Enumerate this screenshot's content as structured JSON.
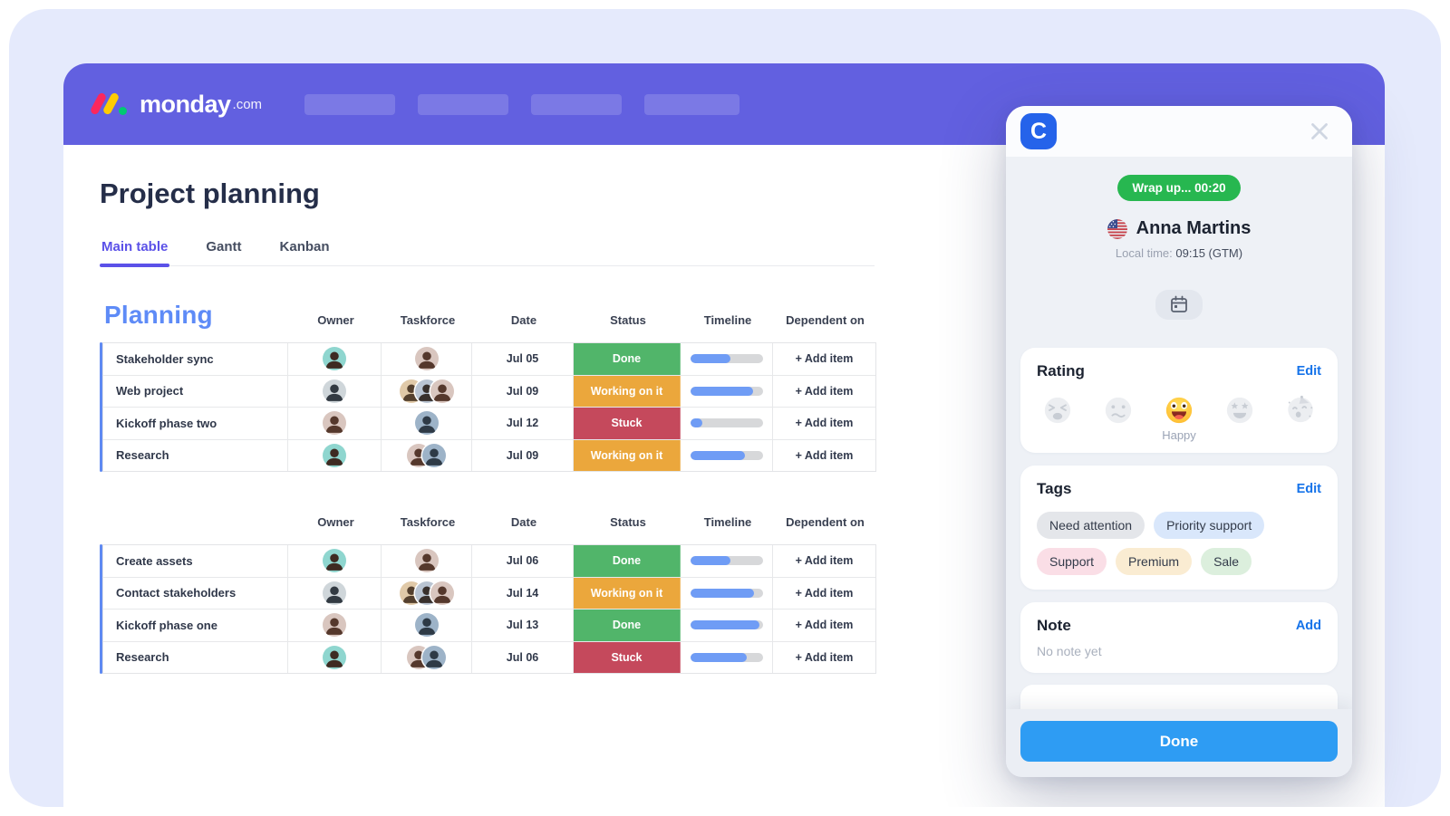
{
  "app": {
    "logo": {
      "brand": "monday",
      "suffix": ".com"
    },
    "title": "Project planning",
    "tabs": [
      {
        "label": "Main table",
        "active": true
      },
      {
        "label": "Gantt",
        "active": false
      },
      {
        "label": "Kanban",
        "active": false
      }
    ]
  },
  "board": {
    "group_title": "Planning",
    "columns": [
      "Owner",
      "Taskforce",
      "Date",
      "Status",
      "Timeline",
      "Dependent on"
    ],
    "add_item_label": "+ Add item",
    "status_colors": {
      "Done": "#51b56a",
      "Working on it": "#eba73c",
      "Stuck": "#c5495c"
    },
    "timeline_colors": {
      "fill": "#6f9cf5",
      "track": "#d7d8da"
    },
    "accent_color": "#5f8af2",
    "tables": [
      {
        "rows": [
          {
            "name": "Stakeholder sync",
            "owner": "p1",
            "taskforce": [
              "p3"
            ],
            "date": "Jul 05",
            "status": "Done",
            "progress": 55
          },
          {
            "name": "Web project",
            "owner": "p2",
            "taskforce": [
              "p6",
              "p7",
              "p3"
            ],
            "date": "Jul 09",
            "status": "Working on it",
            "progress": 87
          },
          {
            "name": "Kickoff phase two",
            "owner": "p3",
            "taskforce": [
              "p5"
            ],
            "date": "Jul 12",
            "status": "Stuck",
            "progress": 17
          },
          {
            "name": "Research",
            "owner": "p1",
            "taskforce": [
              "p3",
              "p5"
            ],
            "date": "Jul 09",
            "status": "Working on it",
            "progress": 75
          }
        ]
      },
      {
        "rows": [
          {
            "name": "Create assets",
            "owner": "p1",
            "taskforce": [
              "p3"
            ],
            "date": "Jul 06",
            "status": "Done",
            "progress": 55
          },
          {
            "name": "Contact stakeholders",
            "owner": "p2",
            "taskforce": [
              "p6",
              "p7",
              "p3"
            ],
            "date": "Jul 14",
            "status": "Working on it",
            "progress": 88
          },
          {
            "name": "Kickoff phase one",
            "owner": "p3",
            "taskforce": [
              "p5"
            ],
            "date": "Jul 13",
            "status": "Done",
            "progress": 95
          },
          {
            "name": "Research",
            "owner": "p1",
            "taskforce": [
              "p3",
              "p5"
            ],
            "date": "Jul 06",
            "status": "Stuck",
            "progress": 78
          }
        ]
      }
    ],
    "people": {
      "p1": {
        "bg": "#8fd6cf",
        "fg": "#3e2b22"
      },
      "p2": {
        "bg": "#cfd6da",
        "fg": "#323a42"
      },
      "p3": {
        "bg": "#d9c6bf",
        "fg": "#55382c"
      },
      "p5": {
        "bg": "#9db3c8",
        "fg": "#2e3a46"
      },
      "p6": {
        "bg": "#e0c9a8",
        "fg": "#54402e"
      },
      "p7": {
        "bg": "#b9c4d2",
        "fg": "#38302c"
      }
    }
  },
  "panel": {
    "logo_letter": "C",
    "timer_badge": "Wrap up... 00:20",
    "contact": {
      "name": "Anna Martins",
      "flag": "us-flag"
    },
    "local_time_label": "Local time:",
    "local_time_value": "09:15 (GTM)",
    "rating": {
      "title": "Rating",
      "edit_label": "Edit",
      "options": [
        "weary-emoji",
        "confused-emoji",
        "happy-emoji",
        "star-struck-emoji",
        "party-emoji"
      ],
      "selected": "happy-emoji",
      "selected_label": "Happy"
    },
    "tags": {
      "title": "Tags",
      "edit_label": "Edit",
      "items": [
        {
          "label": "Need attention",
          "bg": "#e4e6ea"
        },
        {
          "label": "Priority support",
          "bg": "#d9e7fb"
        },
        {
          "label": "Support",
          "bg": "#fadee6"
        },
        {
          "label": "Premium",
          "bg": "#faecd2"
        },
        {
          "label": "Sale",
          "bg": "#dcefdd"
        }
      ]
    },
    "note": {
      "title": "Note",
      "add_label": "Add",
      "empty_text": "No note yet"
    },
    "done_label": "Done"
  }
}
